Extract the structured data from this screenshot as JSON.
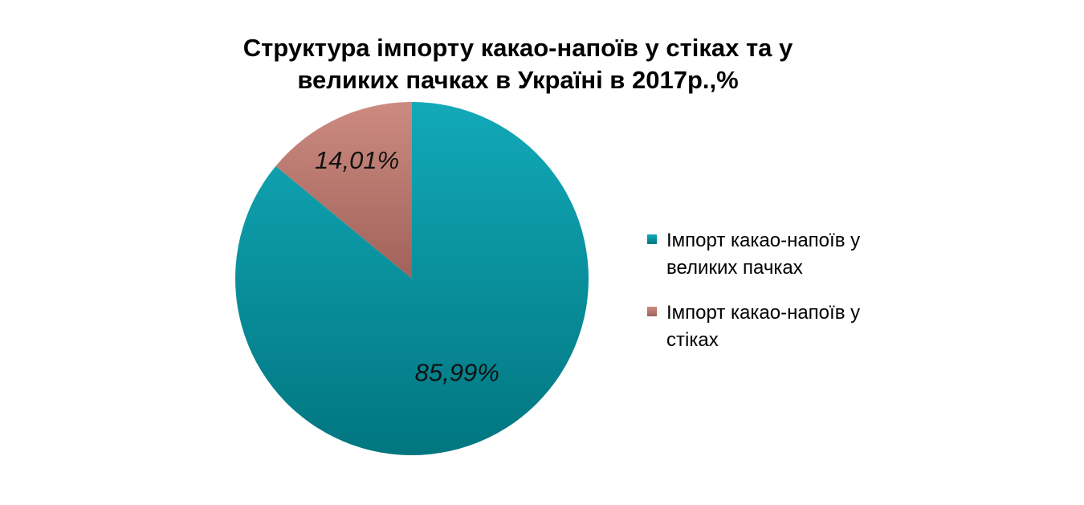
{
  "chart_data": {
    "type": "pie",
    "title_lines": [
      "Структура імпорту какао-напоїв у стіках та у",
      "великих пачках в Україні в 2017р.,%"
    ],
    "slices": [
      {
        "label": "Імпорт какао-напоїв у великих пачках",
        "legend_lines": [
          "Імпорт какао-напоїв у",
          "великих пачках"
        ],
        "value": 85.99,
        "data_label": "85,99%",
        "color": "#0797A6",
        "color_light": "#12A9B8",
        "color_dark": "#017680"
      },
      {
        "label": "Імпорт какао-напоїв у стіках",
        "legend_lines": [
          "Імпорт какао-напоїв у",
          "стіках"
        ],
        "value": 14.01,
        "data_label": "14,01%",
        "color": "#C07A6E",
        "color_light": "#CD8B80",
        "color_dark": "#A0625A"
      }
    ],
    "legend_position": "right",
    "start_angle_deg": 0,
    "direction": "clockwise"
  }
}
